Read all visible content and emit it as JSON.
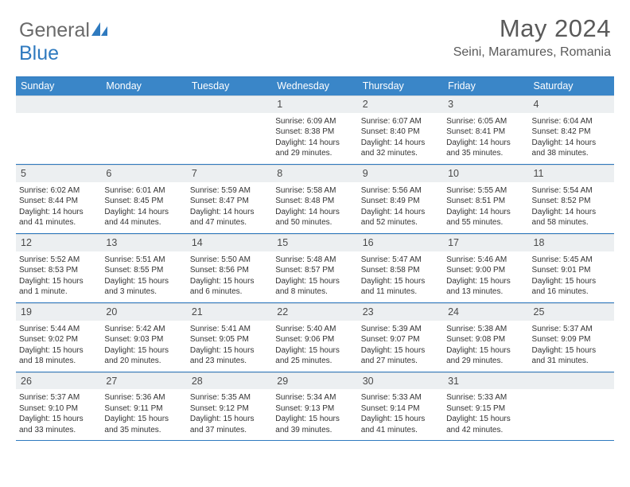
{
  "brand": {
    "name1": "General",
    "name2": "Blue"
  },
  "title": "May 2024",
  "location": "Seini, Maramures, Romania",
  "colors": {
    "accent": "#3a86c8",
    "border": "#2f7abf",
    "rowbg": "#eceff1",
    "text": "#333333"
  },
  "dayNames": [
    "Sunday",
    "Monday",
    "Tuesday",
    "Wednesday",
    "Thursday",
    "Friday",
    "Saturday"
  ],
  "weeks": [
    [
      null,
      null,
      null,
      {
        "n": "1",
        "sr": "Sunrise: 6:09 AM",
        "ss": "Sunset: 8:38 PM",
        "d1": "Daylight: 14 hours",
        "d2": "and 29 minutes."
      },
      {
        "n": "2",
        "sr": "Sunrise: 6:07 AM",
        "ss": "Sunset: 8:40 PM",
        "d1": "Daylight: 14 hours",
        "d2": "and 32 minutes."
      },
      {
        "n": "3",
        "sr": "Sunrise: 6:05 AM",
        "ss": "Sunset: 8:41 PM",
        "d1": "Daylight: 14 hours",
        "d2": "and 35 minutes."
      },
      {
        "n": "4",
        "sr": "Sunrise: 6:04 AM",
        "ss": "Sunset: 8:42 PM",
        "d1": "Daylight: 14 hours",
        "d2": "and 38 minutes."
      }
    ],
    [
      {
        "n": "5",
        "sr": "Sunrise: 6:02 AM",
        "ss": "Sunset: 8:44 PM",
        "d1": "Daylight: 14 hours",
        "d2": "and 41 minutes."
      },
      {
        "n": "6",
        "sr": "Sunrise: 6:01 AM",
        "ss": "Sunset: 8:45 PM",
        "d1": "Daylight: 14 hours",
        "d2": "and 44 minutes."
      },
      {
        "n": "7",
        "sr": "Sunrise: 5:59 AM",
        "ss": "Sunset: 8:47 PM",
        "d1": "Daylight: 14 hours",
        "d2": "and 47 minutes."
      },
      {
        "n": "8",
        "sr": "Sunrise: 5:58 AM",
        "ss": "Sunset: 8:48 PM",
        "d1": "Daylight: 14 hours",
        "d2": "and 50 minutes."
      },
      {
        "n": "9",
        "sr": "Sunrise: 5:56 AM",
        "ss": "Sunset: 8:49 PM",
        "d1": "Daylight: 14 hours",
        "d2": "and 52 minutes."
      },
      {
        "n": "10",
        "sr": "Sunrise: 5:55 AM",
        "ss": "Sunset: 8:51 PM",
        "d1": "Daylight: 14 hours",
        "d2": "and 55 minutes."
      },
      {
        "n": "11",
        "sr": "Sunrise: 5:54 AM",
        "ss": "Sunset: 8:52 PM",
        "d1": "Daylight: 14 hours",
        "d2": "and 58 minutes."
      }
    ],
    [
      {
        "n": "12",
        "sr": "Sunrise: 5:52 AM",
        "ss": "Sunset: 8:53 PM",
        "d1": "Daylight: 15 hours",
        "d2": "and 1 minute."
      },
      {
        "n": "13",
        "sr": "Sunrise: 5:51 AM",
        "ss": "Sunset: 8:55 PM",
        "d1": "Daylight: 15 hours",
        "d2": "and 3 minutes."
      },
      {
        "n": "14",
        "sr": "Sunrise: 5:50 AM",
        "ss": "Sunset: 8:56 PM",
        "d1": "Daylight: 15 hours",
        "d2": "and 6 minutes."
      },
      {
        "n": "15",
        "sr": "Sunrise: 5:48 AM",
        "ss": "Sunset: 8:57 PM",
        "d1": "Daylight: 15 hours",
        "d2": "and 8 minutes."
      },
      {
        "n": "16",
        "sr": "Sunrise: 5:47 AM",
        "ss": "Sunset: 8:58 PM",
        "d1": "Daylight: 15 hours",
        "d2": "and 11 minutes."
      },
      {
        "n": "17",
        "sr": "Sunrise: 5:46 AM",
        "ss": "Sunset: 9:00 PM",
        "d1": "Daylight: 15 hours",
        "d2": "and 13 minutes."
      },
      {
        "n": "18",
        "sr": "Sunrise: 5:45 AM",
        "ss": "Sunset: 9:01 PM",
        "d1": "Daylight: 15 hours",
        "d2": "and 16 minutes."
      }
    ],
    [
      {
        "n": "19",
        "sr": "Sunrise: 5:44 AM",
        "ss": "Sunset: 9:02 PM",
        "d1": "Daylight: 15 hours",
        "d2": "and 18 minutes."
      },
      {
        "n": "20",
        "sr": "Sunrise: 5:42 AM",
        "ss": "Sunset: 9:03 PM",
        "d1": "Daylight: 15 hours",
        "d2": "and 20 minutes."
      },
      {
        "n": "21",
        "sr": "Sunrise: 5:41 AM",
        "ss": "Sunset: 9:05 PM",
        "d1": "Daylight: 15 hours",
        "d2": "and 23 minutes."
      },
      {
        "n": "22",
        "sr": "Sunrise: 5:40 AM",
        "ss": "Sunset: 9:06 PM",
        "d1": "Daylight: 15 hours",
        "d2": "and 25 minutes."
      },
      {
        "n": "23",
        "sr": "Sunrise: 5:39 AM",
        "ss": "Sunset: 9:07 PM",
        "d1": "Daylight: 15 hours",
        "d2": "and 27 minutes."
      },
      {
        "n": "24",
        "sr": "Sunrise: 5:38 AM",
        "ss": "Sunset: 9:08 PM",
        "d1": "Daylight: 15 hours",
        "d2": "and 29 minutes."
      },
      {
        "n": "25",
        "sr": "Sunrise: 5:37 AM",
        "ss": "Sunset: 9:09 PM",
        "d1": "Daylight: 15 hours",
        "d2": "and 31 minutes."
      }
    ],
    [
      {
        "n": "26",
        "sr": "Sunrise: 5:37 AM",
        "ss": "Sunset: 9:10 PM",
        "d1": "Daylight: 15 hours",
        "d2": "and 33 minutes."
      },
      {
        "n": "27",
        "sr": "Sunrise: 5:36 AM",
        "ss": "Sunset: 9:11 PM",
        "d1": "Daylight: 15 hours",
        "d2": "and 35 minutes."
      },
      {
        "n": "28",
        "sr": "Sunrise: 5:35 AM",
        "ss": "Sunset: 9:12 PM",
        "d1": "Daylight: 15 hours",
        "d2": "and 37 minutes."
      },
      {
        "n": "29",
        "sr": "Sunrise: 5:34 AM",
        "ss": "Sunset: 9:13 PM",
        "d1": "Daylight: 15 hours",
        "d2": "and 39 minutes."
      },
      {
        "n": "30",
        "sr": "Sunrise: 5:33 AM",
        "ss": "Sunset: 9:14 PM",
        "d1": "Daylight: 15 hours",
        "d2": "and 41 minutes."
      },
      {
        "n": "31",
        "sr": "Sunrise: 5:33 AM",
        "ss": "Sunset: 9:15 PM",
        "d1": "Daylight: 15 hours",
        "d2": "and 42 minutes."
      },
      null
    ]
  ]
}
